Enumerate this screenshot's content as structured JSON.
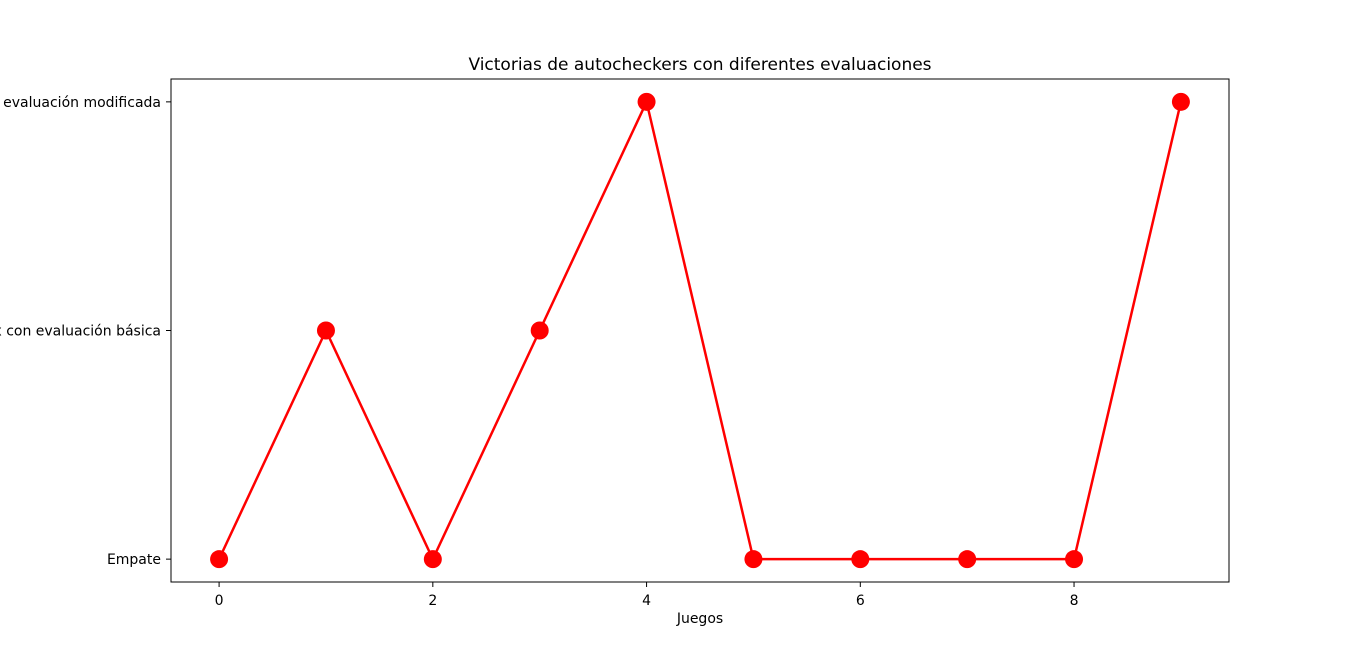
{
  "chart_data": {
    "type": "line",
    "title": "Victorias de autocheckers con diferentes evaluaciones",
    "xlabel": "Juegos",
    "ylabel": "",
    "x": [
      0,
      1,
      2,
      3,
      4,
      5,
      6,
      7,
      8,
      9
    ],
    "y_categories": [
      "Empate",
      "x con evaluación básica",
      " evaluación modificada"
    ],
    "series": [
      {
        "values": [
          0,
          1,
          0,
          1,
          2,
          0,
          0,
          0,
          0,
          2
        ],
        "labels": [
          "Empate",
          "x con evaluación básica",
          "Empate",
          "x con evaluación básica",
          " evaluación modificada",
          "Empate",
          "Empate",
          "Empate",
          "Empate",
          " evaluación modificada"
        ]
      }
    ],
    "x_ticks": [
      0,
      2,
      4,
      6,
      8
    ],
    "xlim": [
      -0.45,
      9.45
    ],
    "ylim": [
      -0.1,
      2.1
    ],
    "grid": false,
    "legend": "none",
    "colors": {
      "line": "#ff0000",
      "marker": "#ff0000",
      "axes": "#000000",
      "background": "#ffffff"
    }
  }
}
